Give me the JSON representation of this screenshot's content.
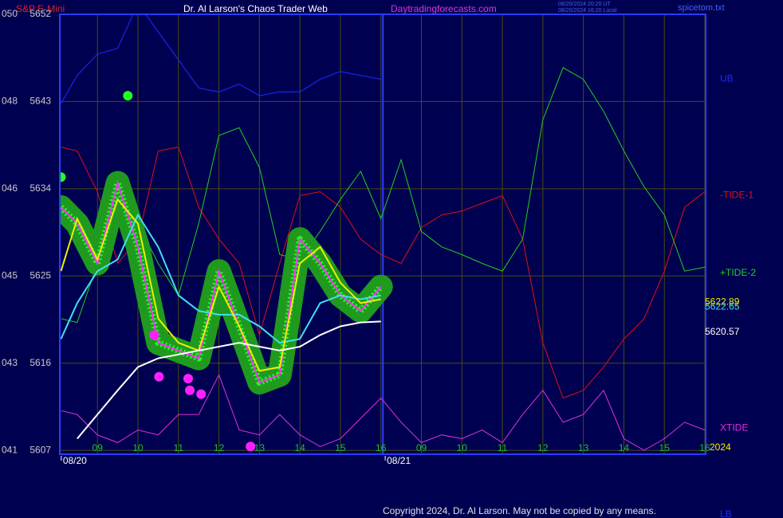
{
  "chart_data": {
    "type": "line",
    "title": "Dr. Al Larson's Chaos Trader Web",
    "instrument": "S&P E-Mini",
    "site": "Daytradingforecasts.com",
    "timestamps": [
      "08/20/2024 20:20 UT",
      "08/20/2024 16:20 Local"
    ],
    "file": "spicetom.txt",
    "copyright": "Copyright 2024, Dr. Al Larson. May not be copied by any means.",
    "year": "2024",
    "dates": [
      {
        "x": -0.5,
        "label": "08/20"
      },
      {
        "x": 7.5,
        "label": "08/21"
      }
    ],
    "day_break": 7.05,
    "xlim": [
      -0.93,
      15.02
    ],
    "ylim": [
      5606.6,
      5652
    ],
    "grid": true,
    "xticks": [
      {
        "value": 0,
        "label": "09"
      },
      {
        "value": 1,
        "label": "10"
      },
      {
        "value": 2,
        "label": "11"
      },
      {
        "value": 3,
        "label": "12"
      },
      {
        "value": 4,
        "label": "13"
      },
      {
        "value": 5,
        "label": "14"
      },
      {
        "value": 6,
        "label": "15"
      },
      {
        "value": 7,
        "label": "16"
      },
      {
        "value": 8,
        "label": "09"
      },
      {
        "value": 9,
        "label": "10"
      },
      {
        "value": 10,
        "label": "11"
      },
      {
        "value": 11,
        "label": "12"
      },
      {
        "value": 12,
        "label": "13"
      },
      {
        "value": 13,
        "label": "14"
      },
      {
        "value": 14,
        "label": "15"
      },
      {
        "value": 15,
        "label": "16"
      }
    ],
    "yticks": [
      {
        "value": 5652,
        "label": "050 5652"
      },
      {
        "value": 5643,
        "label": "048 5643"
      },
      {
        "value": 5634,
        "label": "046 5634"
      },
      {
        "value": 5625,
        "label": "045 5625"
      },
      {
        "value": 5616,
        "label": "043 5616"
      },
      {
        "value": 5607,
        "label": "041 5607"
      }
    ],
    "x": [
      -0.9,
      -0.5,
      0,
      0.5,
      1,
      1.5,
      2,
      2.5,
      3,
      3.5,
      4,
      4.5,
      5,
      5.5,
      6,
      6.5,
      7,
      7.5,
      8,
      8.5,
      9,
      9.5,
      10,
      10.5,
      11,
      11.5,
      12,
      12.5,
      13,
      13.5,
      14,
      14.5,
      15
    ],
    "series": [
      {
        "name": "UB",
        "color": "#1a2cff",
        "label_y": 5645.3,
        "values": [
          5642.8,
          5645.7,
          5647.9,
          5648.5,
          5653.1,
          5650.2,
          5647.3,
          5644.4,
          5644.0,
          5644.8,
          5643.6,
          5644.0,
          5644.0,
          5645.3,
          5646.1,
          5645.7,
          5645.3,
          null,
          null,
          null,
          null,
          null,
          null,
          null,
          null,
          null,
          null,
          null,
          null,
          null,
          null,
          null,
          null
        ]
      },
      {
        "name": "-TIDE-1",
        "color": "#e01010",
        "label_y": 5633.3,
        "values": [
          5638.3,
          5637.9,
          5633.7,
          5626.3,
          5628.8,
          5637.9,
          5638.3,
          5632.1,
          5628.8,
          5626.3,
          5618.9,
          5626.3,
          5633.3,
          5633.7,
          5632.1,
          5628.8,
          5627.2,
          5626.3,
          5630.0,
          5631.3,
          5631.7,
          5632.5,
          5633.3,
          5628.8,
          5618.1,
          5612.4,
          5613.2,
          5615.6,
          5618.5,
          5620.6,
          5625.5,
          5632.1,
          5633.7
        ]
      },
      {
        "name": "+TIDE-2",
        "color": "#20d020",
        "label_y": 5625.3,
        "values": [
          5620.6,
          5620.2,
          5626.3,
          5632.9,
          5630.4,
          5626.3,
          5623.0,
          5630.4,
          5639.5,
          5640.3,
          5636.2,
          5627.2,
          5626.7,
          5629.6,
          5632.9,
          5635.8,
          5630.9,
          5637.0,
          5629.6,
          5628.0,
          5627.2,
          5626.3,
          5625.5,
          5628.8,
          5641.1,
          5646.5,
          5645.3,
          5642.0,
          5637.9,
          5634.2,
          5631.3,
          5625.5,
          5625.9
        ]
      },
      {
        "name": "XTIDE",
        "color": "#e030e0",
        "label_y": 5609.3,
        "values": [
          5611.1,
          5610.7,
          5608.6,
          5607.8,
          5609.1,
          5608.6,
          5610.7,
          5610.7,
          5614.8,
          5609.1,
          5608.6,
          5610.7,
          5608.6,
          5607.4,
          5608.2,
          5610.3,
          5612.4,
          5609.9,
          5607.8,
          5608.6,
          5608.2,
          5609.1,
          5607.8,
          5610.7,
          5613.2,
          5609.9,
          5610.7,
          5613.2,
          5608.2,
          5607.0,
          5608.2,
          5609.9,
          5609.1
        ]
      },
      {
        "color": "#ff30ff",
        "halo_color": "#1f9a1f",
        "bar_color": "#22ff22",
        "values": [
          5632.1,
          5630.4,
          5626.3,
          5634.6,
          5628.0,
          5618.1,
          5617.3,
          5616.5,
          5625.5,
          5619.8,
          5614.0,
          5614.8,
          5628.8,
          5626.3,
          5623.0,
          5621.4,
          5623.9,
          null,
          null,
          null,
          null,
          null,
          null,
          null,
          null,
          null,
          null,
          null,
          null,
          null,
          null,
          null,
          null
        ]
      },
      {
        "color": "#40e0f0",
        "values": [
          5618.5,
          5622.2,
          5625.5,
          5626.7,
          5631.3,
          5628.0,
          5623.0,
          5621.4,
          5621.0,
          5621.0,
          5619.8,
          5618.1,
          5618.5,
          5622.2,
          5623.0,
          5622.6,
          5623.0,
          null,
          null,
          null,
          null,
          null,
          null,
          null,
          null,
          null,
          null,
          null,
          null,
          null,
          null,
          null,
          null
        ]
      },
      {
        "color": "#f0f000",
        "values": [
          5625.5,
          5630.9,
          5626.7,
          5632.9,
          5630.4,
          5620.6,
          5618.1,
          5617.3,
          5623.9,
          5619.8,
          5615.2,
          5615.6,
          5626.3,
          5628.0,
          5624.3,
          5622.2,
          5622.6,
          null,
          null,
          null,
          null,
          null,
          null,
          null,
          null,
          null,
          null,
          null,
          null,
          null,
          null,
          null,
          null
        ]
      },
      {
        "color": "#ffffff",
        "values": [
          null,
          5608.2,
          5610.7,
          5613.2,
          5615.6,
          5616.5,
          5616.9,
          5617.3,
          5617.7,
          5618.1,
          5617.7,
          5617.3,
          5617.7,
          5618.9,
          5619.8,
          5620.2,
          5620.3,
          null,
          null,
          null,
          null,
          null,
          null,
          null,
          null,
          null,
          null,
          null,
          null,
          null,
          null,
          null,
          null
        ]
      }
    ],
    "points": [
      {
        "color": "#ff20ff",
        "x": [
          1.4,
          1.52,
          2.24,
          2.28,
          2.56,
          3.78
        ],
        "y": [
          5618.9,
          5614.6,
          5614.4,
          5613.2,
          5612.8,
          5607.4
        ]
      },
      {
        "color": "#20ff20",
        "x": [
          -0.9,
          0.75
        ],
        "y": [
          5635.2,
          5643.6
        ]
      }
    ],
    "value_labels": [
      {
        "label": "5622.89",
        "color": "#f0f000",
        "y": 5622.3
      },
      {
        "label": "5622.65",
        "color": "#40e0f0",
        "y": 5621.8
      },
      {
        "label": "5620.57",
        "color": "#ffffff",
        "y": 5619.2
      }
    ],
    "lower_label": {
      "label": "LB",
      "color": "#1a2cff"
    }
  }
}
